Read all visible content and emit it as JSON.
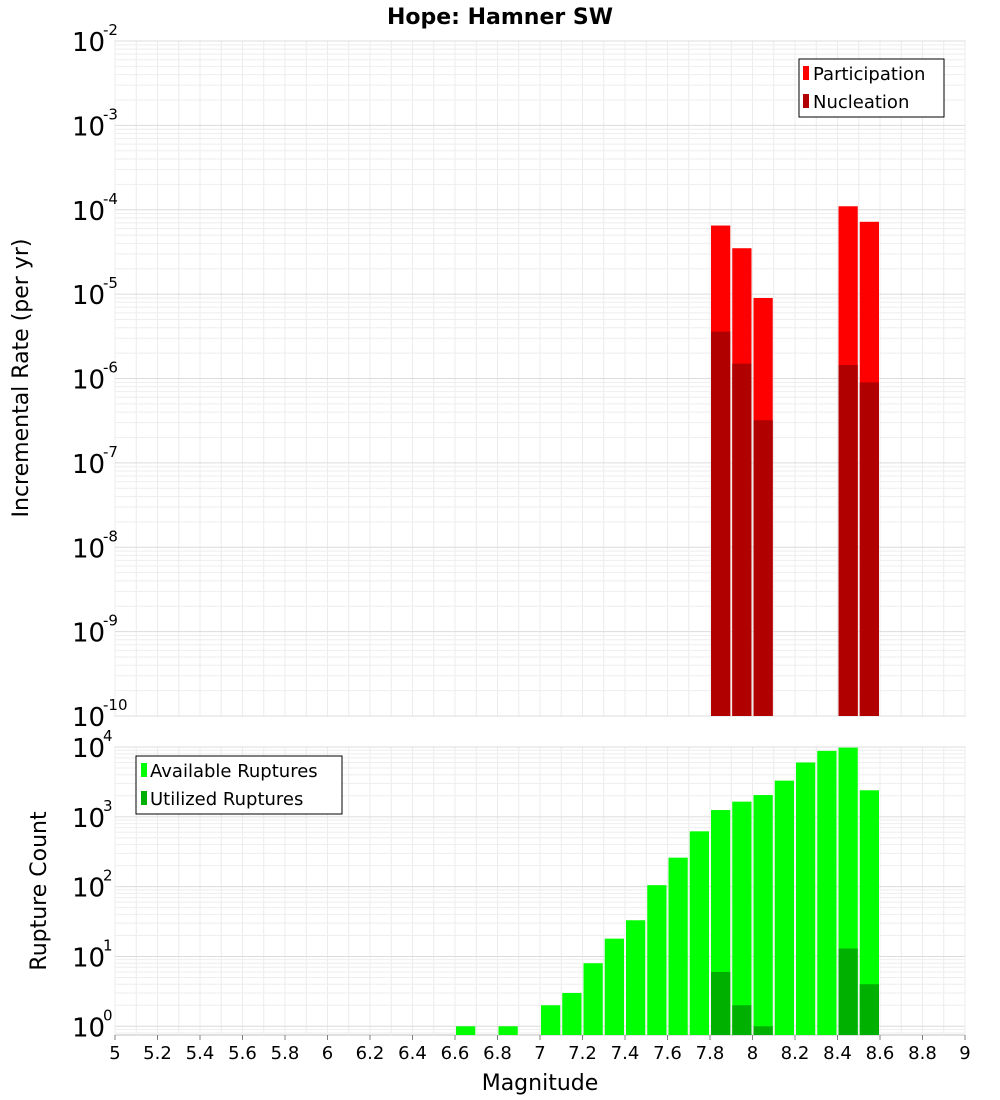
{
  "chart_data": [
    {
      "type": "bar",
      "title": "Hope: Hamner SW",
      "xlabel": "Magnitude",
      "ylabel": "Incremental Rate (per yr)",
      "yscale": "log",
      "ylim": [
        1e-10,
        0.01
      ],
      "y_tick_exponents": [
        "-10",
        "-9",
        "-8",
        "-7",
        "-6",
        "-5",
        "-4",
        "-3",
        "-2"
      ],
      "xlim": [
        5,
        9
      ],
      "bin_width": 0.1,
      "legend_position": "top-right",
      "series": [
        {
          "name": "Participation",
          "color": "#ff0000",
          "x": [
            7.85,
            7.95,
            8.05,
            8.45,
            8.55
          ],
          "values": [
            6.5e-05,
            3.5e-05,
            9e-06,
            0.00011,
            7.2e-05
          ]
        },
        {
          "name": "Nucleation",
          "color": "#b00000",
          "x": [
            7.85,
            7.95,
            8.05,
            8.45,
            8.55
          ],
          "values": [
            3.6e-06,
            1.5e-06,
            3.2e-07,
            1.45e-06,
            9e-07
          ]
        }
      ]
    },
    {
      "type": "bar",
      "title": "",
      "xlabel": "Magnitude",
      "ylabel": "Rupture Count",
      "yscale": "log",
      "ylim": [
        0.75,
        10000
      ],
      "y_tick_exponents": [
        "0",
        "1",
        "2",
        "3",
        "4"
      ],
      "xlim": [
        5,
        9
      ],
      "x_ticks": [
        "5",
        "5.2",
        "5.4",
        "5.6",
        "5.8",
        "6",
        "6.2",
        "6.4",
        "6.6",
        "6.8",
        "7",
        "7.2",
        "7.4",
        "7.6",
        "7.8",
        "8",
        "8.2",
        "8.4",
        "8.6",
        "8.8",
        "9"
      ],
      "bin_width": 0.1,
      "legend_position": "top-left",
      "series": [
        {
          "name": "Available Ruptures",
          "color": "#00ff00",
          "x": [
            6.65,
            6.85,
            7.05,
            7.15,
            7.25,
            7.35,
            7.45,
            7.55,
            7.65,
            7.75,
            7.85,
            7.95,
            8.05,
            8.15,
            8.25,
            8.35,
            8.45,
            8.55
          ],
          "values": [
            1,
            1,
            2,
            3,
            8,
            18,
            33,
            105,
            260,
            620,
            1250,
            1650,
            2050,
            3300,
            6000,
            8800,
            9800,
            2400
          ]
        },
        {
          "name": "Utilized Ruptures",
          "color": "#00b000",
          "x": [
            7.85,
            7.95,
            8.05,
            8.45,
            8.55
          ],
          "values": [
            6,
            2,
            1,
            13,
            4
          ]
        }
      ]
    }
  ]
}
